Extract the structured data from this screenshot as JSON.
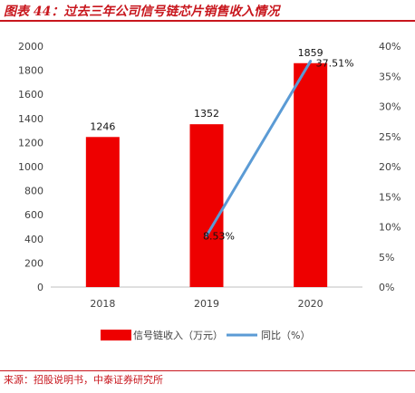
{
  "title": "图表 44：过去三年公司信号链芯片销售收入情况",
  "source": "来源：招股说明书，中泰证券研究所",
  "colors": {
    "bar": "#ee0000",
    "line": "#5b9bd5",
    "brand": "#c8161d"
  },
  "chart_data": {
    "type": "bar",
    "categories": [
      "2018",
      "2019",
      "2020"
    ],
    "series": [
      {
        "name": "信号链收入（万元）",
        "type": "bar",
        "axis": "left",
        "values": [
          1246,
          1352,
          1859
        ],
        "labels": [
          "1246",
          "1352",
          "1859"
        ]
      },
      {
        "name": "同比（%）",
        "type": "line",
        "axis": "right",
        "values": [
          null,
          8.53,
          37.51
        ],
        "labels": [
          "",
          "8.53%",
          "37.51%"
        ]
      }
    ],
    "y_left": {
      "min": 0,
      "max": 2000,
      "step": 200,
      "ticks": [
        "0",
        "200",
        "400",
        "600",
        "800",
        "1000",
        "1200",
        "1400",
        "1600",
        "1800",
        "2000"
      ]
    },
    "y_right": {
      "min": 0,
      "max": 40,
      "step": 5,
      "ticks": [
        "0%",
        "5%",
        "10%",
        "15%",
        "20%",
        "25%",
        "30%",
        "35%",
        "40%"
      ]
    },
    "grid": false,
    "legend": "bottom"
  }
}
